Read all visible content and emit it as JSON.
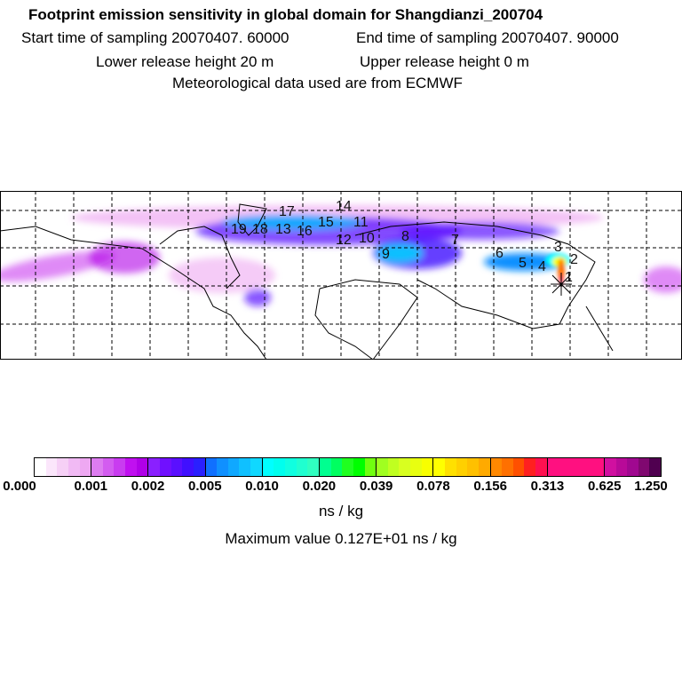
{
  "header": {
    "title": "Footprint emission sensitivity in global domain for Shangdianzi_200704",
    "start": "Start time of sampling 20070407. 60000",
    "end": "End time of sampling 20070407. 90000",
    "lower": "Lower release height   20 m",
    "upper": "Upper release height    0 m",
    "met": "Meteorological data used are from ECMWF"
  },
  "map": {
    "trajectory_labels": [
      "1",
      "2",
      "3",
      "4",
      "5",
      "6",
      "7",
      "8",
      "9",
      "10",
      "11",
      "12",
      "13",
      "14",
      "15",
      "16",
      "17",
      "18",
      "19"
    ]
  },
  "colorbar": {
    "ticks": [
      "0.000",
      "0.001",
      "0.002",
      "0.005",
      "0.010",
      "0.020",
      "0.039",
      "0.078",
      "0.156",
      "0.313",
      "0.625",
      "1.250"
    ],
    "colors": [
      [
        "#ffffff",
        "#fbe6fb",
        "#f6d0f6",
        "#f1baf4",
        "#eea8f2"
      ],
      [
        "#dd7cf0",
        "#d35cf0",
        "#c93cf0",
        "#c010f0",
        "#b000e8"
      ],
      [
        "#8a20ff",
        "#7010ff",
        "#5a10ff",
        "#4010ff",
        "#2a20ff"
      ],
      [
        "#1070ff",
        "#1090ff",
        "#10a8ff",
        "#10c0ff",
        "#10d8ff"
      ],
      [
        "#00ffff",
        "#00ffee",
        "#10ffe0",
        "#20ffd0",
        "#30ffc0"
      ],
      [
        "#00ff90",
        "#00ff60",
        "#20ff20",
        "#00ff00",
        "#70ff10"
      ],
      [
        "#a0ff20",
        "#c0ff20",
        "#d8ff20",
        "#e8ff10",
        "#f8ff00"
      ],
      [
        "#ffff00",
        "#ffe000",
        "#ffd000",
        "#ffc000",
        "#ffaa00"
      ],
      [
        "#ff8800",
        "#ff7000",
        "#ff5000",
        "#ff2020",
        "#ff1050"
      ],
      [
        "#ff1080",
        "#ff1080",
        "#ff1080",
        "#ff1080",
        "#ff1080"
      ],
      [
        "#d010a0",
        "#b80a98",
        "#a00890",
        "#800870",
        "#500050"
      ]
    ],
    "unit": "ns / kg",
    "max_value": "Maximum value  0.127E+01 ns / kg"
  }
}
